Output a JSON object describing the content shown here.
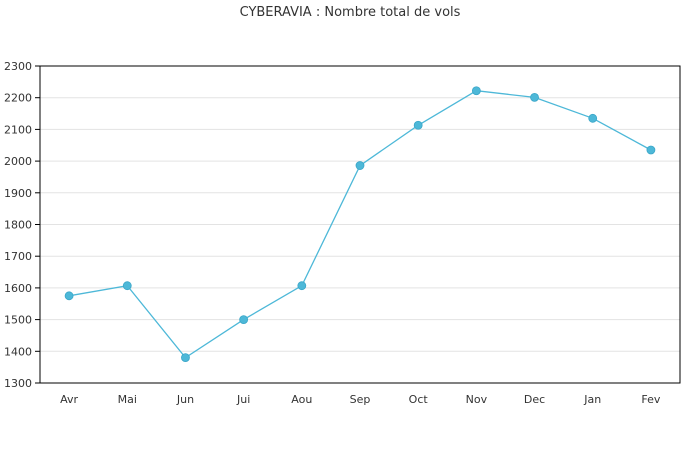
{
  "chart_data": {
    "type": "line",
    "title": "CYBERAVIA : Nombre total de vols",
    "xlabel": "",
    "ylabel": "",
    "categories": [
      "Avr",
      "Mai",
      "Jun",
      "Jui",
      "Aou",
      "Sep",
      "Oct",
      "Nov",
      "Dec",
      "Jan",
      "Fev"
    ],
    "series": [
      {
        "values": [
          1575,
          1607,
          1380,
          1500,
          1607,
          1986,
          2113,
          2222,
          2201,
          2135,
          2035
        ]
      }
    ],
    "ylim": [
      1300,
      2300
    ],
    "yticks": [
      1300,
      1400,
      1500,
      1600,
      1700,
      1800,
      1900,
      2000,
      2100,
      2200,
      2300
    ],
    "grid": true,
    "colors": {
      "line": "#4db8d8",
      "marker": "#4db8d8",
      "grid": "#e3e3e3",
      "axis": "#000000"
    }
  }
}
